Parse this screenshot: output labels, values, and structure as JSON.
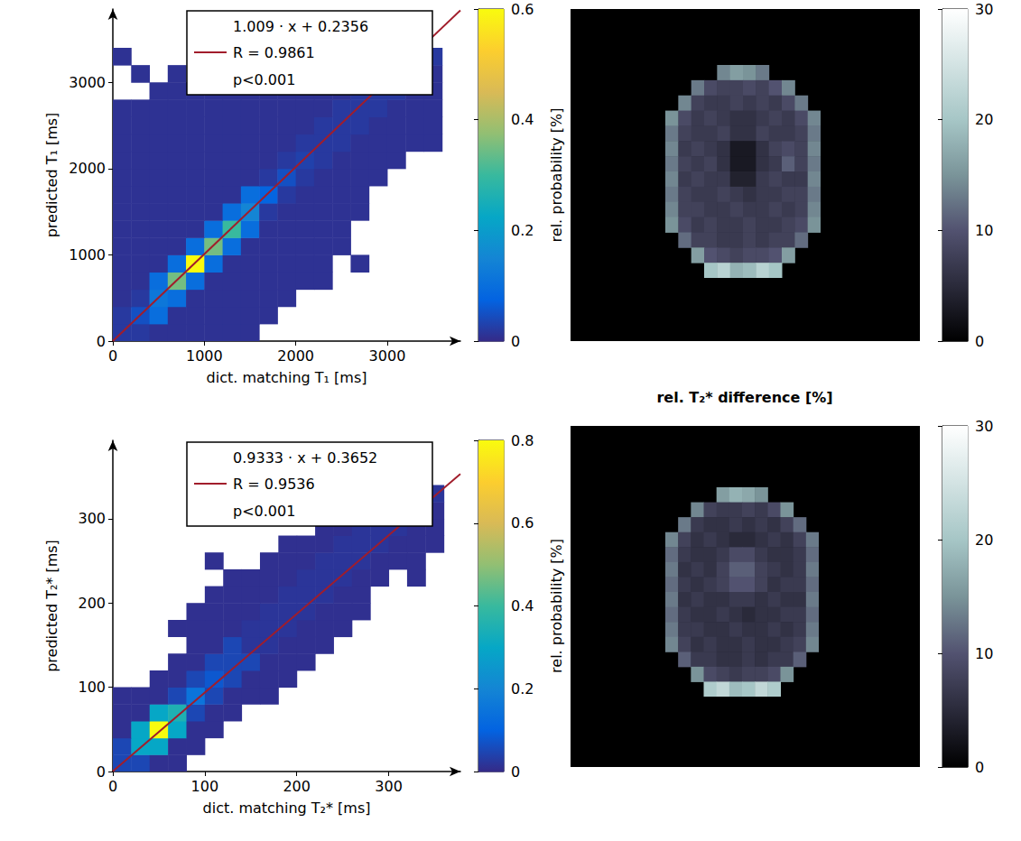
{
  "chart_data": [
    {
      "type": "histogram2d",
      "x_label": "dict. matching T₁ [ms]",
      "y_label": "predicted T₁ [ms]",
      "xlim": [
        0,
        3800
      ],
      "ylim": [
        0,
        3850
      ],
      "xticks": [
        0,
        1000,
        2000,
        3000
      ],
      "yticks": [
        0,
        1000,
        2000,
        3000
      ],
      "x_bins": [
        0,
        200,
        400,
        600,
        800,
        1000,
        1200,
        1400,
        1600,
        1800,
        2000,
        2200,
        2400,
        2600,
        2800,
        3000,
        3200,
        3400,
        3600
      ],
      "y_bins": [
        0,
        200,
        400,
        600,
        800,
        1000,
        1200,
        1400,
        1600,
        1800,
        2000,
        2200,
        2400,
        2600,
        2800,
        3000,
        3200,
        3400,
        3600
      ],
      "probability": [
        [
          0.02,
          0.02,
          0.01,
          0.01,
          0.01,
          0.01,
          0.01,
          0.01,
          null,
          null,
          null,
          null,
          null,
          null,
          null,
          null,
          null,
          null
        ],
        [
          0.02,
          0.05,
          0.1,
          0.01,
          0.01,
          0.01,
          0.01,
          0.01,
          0.01,
          null,
          null,
          null,
          null,
          null,
          null,
          null,
          null,
          null
        ],
        [
          0.01,
          0.02,
          0.12,
          0.1,
          0.01,
          0.01,
          0.01,
          0.01,
          0.01,
          0.01,
          null,
          null,
          null,
          null,
          null,
          null,
          null,
          null
        ],
        [
          0.01,
          0.01,
          0.1,
          0.35,
          0.1,
          0.01,
          0.01,
          0.01,
          0.01,
          0.01,
          0.01,
          0.01,
          null,
          null,
          null,
          null,
          null,
          null
        ],
        [
          0.01,
          0.01,
          0.01,
          0.1,
          0.6,
          0.1,
          0.01,
          0.01,
          0.01,
          0.01,
          0.01,
          0.01,
          null,
          0.01,
          null,
          null,
          null,
          null
        ],
        [
          0.01,
          0.01,
          0.01,
          0.01,
          0.1,
          0.35,
          0.1,
          0.01,
          0.01,
          0.01,
          0.01,
          0.01,
          0.01,
          null,
          null,
          null,
          null,
          null
        ],
        [
          0.01,
          0.01,
          0.01,
          0.01,
          0.01,
          0.1,
          0.3,
          0.1,
          0.01,
          0.01,
          0.01,
          0.01,
          0.01,
          null,
          null,
          null,
          null,
          null
        ],
        [
          0.01,
          0.01,
          0.01,
          0.01,
          0.01,
          0.01,
          0.1,
          0.15,
          0.02,
          0.01,
          0.01,
          0.01,
          0.01,
          0.01,
          null,
          null,
          null,
          null
        ],
        [
          0.01,
          0.01,
          0.01,
          0.01,
          0.01,
          0.01,
          0.01,
          0.1,
          0.08,
          0.02,
          0.01,
          0.01,
          0.01,
          0.01,
          null,
          null,
          null,
          null
        ],
        [
          0.01,
          0.01,
          0.01,
          0.01,
          0.01,
          0.01,
          0.01,
          0.01,
          0.02,
          0.05,
          0.02,
          0.01,
          0.01,
          0.01,
          0.01,
          null,
          null,
          null
        ],
        [
          0.01,
          0.01,
          0.01,
          0.01,
          0.01,
          0.01,
          0.01,
          0.01,
          0.01,
          0.02,
          0.03,
          0.02,
          0.01,
          0.01,
          0.01,
          0.01,
          null,
          null
        ],
        [
          0.01,
          0.01,
          0.01,
          0.01,
          0.01,
          0.01,
          0.01,
          0.01,
          0.01,
          0.01,
          0.02,
          0.02,
          0.02,
          0.01,
          0.01,
          0.01,
          0.01,
          0.01
        ],
        [
          0.01,
          0.01,
          0.01,
          0.01,
          0.01,
          0.01,
          0.01,
          0.01,
          0.01,
          0.01,
          0.01,
          0.02,
          0.02,
          0.02,
          0.01,
          0.01,
          0.01,
          0.01
        ],
        [
          0.01,
          0.01,
          0.01,
          0.01,
          0.01,
          0.01,
          0.01,
          0.01,
          0.01,
          0.01,
          0.01,
          0.01,
          0.02,
          0.02,
          0.02,
          0.01,
          0.01,
          0.01
        ],
        [
          null,
          null,
          0.01,
          0.01,
          0.01,
          0.01,
          0.01,
          0.01,
          0.01,
          0.01,
          0.01,
          0.01,
          0.01,
          0.02,
          0.02,
          0.02,
          0.01,
          0.01
        ],
        [
          null,
          0.01,
          null,
          0.01,
          null,
          0.01,
          0.01,
          0.01,
          0.01,
          0.01,
          0.01,
          0.01,
          0.01,
          0.01,
          0.02,
          0.02,
          0.02,
          0.01
        ],
        [
          0.01,
          null,
          null,
          null,
          null,
          null,
          0.01,
          0.01,
          0.01,
          0.01,
          0.01,
          0.01,
          0.01,
          0.01,
          0.01,
          0.02,
          0.02,
          0.02
        ],
        [
          null,
          null,
          null,
          null,
          null,
          null,
          0.01,
          0.01,
          0.01,
          0.01,
          0.01,
          0.01,
          0.01,
          0.01,
          0.01,
          0.01,
          0.02,
          null
        ]
      ],
      "colorbar": {
        "label": "rel. probability [%]",
        "range": [
          0,
          0.6
        ],
        "ticks": [
          0,
          0.2,
          0.4,
          0.6
        ]
      },
      "fit": {
        "label": "1.009 · x + 0.2356",
        "slope": 1.009,
        "intercept": 0.2356,
        "r_label": "R = 0.9861",
        "p_label": "p<0.001",
        "color": "#a11d2b"
      }
    },
    {
      "type": "heatmap",
      "tick_labels": false,
      "values": [
        [
          null,
          null,
          null,
          null,
          14,
          16,
          15,
          13,
          null,
          null,
          null,
          null
        ],
        [
          null,
          null,
          13,
          9,
          8,
          8,
          9,
          8,
          10,
          14,
          null,
          null
        ],
        [
          null,
          14,
          8,
          7,
          7,
          8,
          7,
          8,
          7,
          9,
          13,
          null
        ],
        [
          15,
          9,
          7,
          8,
          7,
          6,
          6,
          7,
          8,
          7,
          9,
          14
        ],
        [
          13,
          8,
          7,
          7,
          8,
          6,
          6,
          8,
          7,
          7,
          8,
          13
        ],
        [
          14,
          7,
          8,
          7,
          6,
          3,
          3,
          6,
          8,
          9,
          8,
          14
        ],
        [
          13,
          8,
          7,
          8,
          6,
          3,
          3,
          6,
          7,
          11,
          8,
          13
        ],
        [
          14,
          7,
          8,
          7,
          7,
          4,
          4,
          7,
          8,
          7,
          7,
          14
        ],
        [
          13,
          8,
          7,
          7,
          8,
          7,
          6,
          7,
          7,
          8,
          8,
          13
        ],
        [
          14,
          8,
          8,
          7,
          7,
          8,
          7,
          7,
          8,
          7,
          8,
          14
        ],
        [
          15,
          9,
          7,
          8,
          7,
          7,
          8,
          7,
          7,
          8,
          9,
          15
        ],
        [
          null,
          12,
          8,
          8,
          7,
          7,
          8,
          7,
          8,
          8,
          12,
          null
        ],
        [
          null,
          null,
          16,
          10,
          9,
          8,
          9,
          9,
          10,
          16,
          null,
          null
        ],
        [
          null,
          null,
          null,
          20,
          22,
          18,
          19,
          22,
          20,
          null,
          null,
          null
        ]
      ],
      "colorbar": {
        "range": [
          0,
          30
        ],
        "ticks": [
          0,
          10,
          20,
          30
        ]
      }
    },
    {
      "type": "histogram2d",
      "x_label": "dict. matching T₂* [ms]",
      "y_label": "predicted T₂* [ms]",
      "xlim": [
        0,
        378
      ],
      "ylim": [
        0,
        393
      ],
      "xticks": [
        0,
        100,
        200,
        300
      ],
      "yticks": [
        0,
        100,
        200,
        300
      ],
      "x_bins": [
        0,
        20,
        40,
        60,
        80,
        100,
        120,
        140,
        160,
        180,
        200,
        220,
        240,
        260,
        280,
        300,
        320,
        340,
        360
      ],
      "y_bins": [
        0,
        20,
        40,
        60,
        80,
        100,
        120,
        140,
        160,
        180,
        200,
        220,
        240,
        260,
        280,
        300,
        320,
        340,
        360
      ],
      "probability": [
        [
          0.05,
          0.05,
          0.01,
          0.01,
          null,
          null,
          null,
          null,
          null,
          null,
          null,
          null,
          null,
          null,
          null,
          null,
          null,
          null
        ],
        [
          0.05,
          0.3,
          0.3,
          0.01,
          0.01,
          null,
          null,
          null,
          null,
          null,
          null,
          null,
          null,
          null,
          null,
          null,
          null,
          null
        ],
        [
          0.01,
          0.3,
          0.8,
          0.3,
          0.01,
          0.01,
          null,
          null,
          null,
          null,
          null,
          null,
          null,
          null,
          null,
          null,
          null,
          null
        ],
        [
          0.01,
          0.01,
          0.3,
          0.35,
          0.05,
          0.01,
          0.01,
          null,
          null,
          null,
          null,
          null,
          null,
          null,
          null,
          null,
          null,
          null
        ],
        [
          0.01,
          0.01,
          0.01,
          0.05,
          0.15,
          0.05,
          0.01,
          0.01,
          0.01,
          null,
          null,
          null,
          null,
          null,
          null,
          null,
          null,
          null
        ],
        [
          null,
          null,
          0.01,
          0.01,
          0.05,
          0.08,
          0.05,
          0.01,
          0.01,
          0.01,
          null,
          null,
          null,
          null,
          null,
          null,
          null,
          null
        ],
        [
          null,
          null,
          null,
          0.01,
          0.01,
          0.05,
          0.05,
          0.05,
          0.01,
          0.01,
          0.01,
          null,
          null,
          null,
          null,
          null,
          null,
          null
        ],
        [
          null,
          null,
          null,
          null,
          0.01,
          0.01,
          0.05,
          0.02,
          0.02,
          0.01,
          0.01,
          0.01,
          null,
          null,
          null,
          null,
          null,
          null
        ],
        [
          null,
          null,
          null,
          0.01,
          0.01,
          0.01,
          0.01,
          0.02,
          0.02,
          0.02,
          0.01,
          0.01,
          0.01,
          null,
          null,
          null,
          null,
          null
        ],
        [
          null,
          null,
          null,
          null,
          0.01,
          0.01,
          0.01,
          0.01,
          0.02,
          0.02,
          0.02,
          0.01,
          0.01,
          0.01,
          null,
          null,
          null,
          null
        ],
        [
          null,
          null,
          null,
          null,
          null,
          0.01,
          0.01,
          0.01,
          0.01,
          0.02,
          0.02,
          0.02,
          0.01,
          0.01,
          null,
          null,
          null,
          null
        ],
        [
          null,
          null,
          null,
          null,
          null,
          null,
          0.01,
          0.01,
          0.01,
          0.01,
          0.02,
          0.02,
          0.02,
          0.01,
          0.01,
          null,
          0.01,
          null
        ],
        [
          null,
          null,
          null,
          null,
          null,
          0.01,
          null,
          null,
          0.01,
          0.01,
          0.01,
          0.02,
          0.02,
          0.02,
          0.01,
          0.01,
          0.01,
          null
        ],
        [
          null,
          null,
          null,
          null,
          null,
          null,
          null,
          null,
          null,
          0.01,
          0.01,
          0.01,
          0.02,
          0.02,
          0.02,
          0.01,
          0.01,
          0.01
        ],
        [
          null,
          null,
          null,
          null,
          null,
          null,
          null,
          null,
          null,
          null,
          null,
          0.01,
          0.01,
          0.02,
          0.02,
          0.02,
          0.01,
          0.01
        ],
        [
          null,
          null,
          null,
          null,
          null,
          null,
          null,
          null,
          null,
          null,
          null,
          null,
          0.01,
          0.01,
          0.02,
          0.02,
          0.02,
          0.01
        ],
        [
          null,
          null,
          null,
          null,
          null,
          null,
          null,
          null,
          null,
          null,
          null,
          null,
          null,
          0.01,
          0.01,
          0.02,
          0.02,
          0.02
        ],
        [
          null,
          null,
          null,
          null,
          null,
          null,
          null,
          null,
          null,
          null,
          null,
          null,
          null,
          0.01,
          0.01,
          0.01,
          0.02,
          null
        ]
      ],
      "colorbar": {
        "label": "rel. probability [%]",
        "range": [
          0,
          0.8
        ],
        "ticks": [
          0,
          0.2,
          0.4,
          0.6,
          0.8
        ]
      },
      "fit": {
        "label": "0.9333 · x + 0.3652",
        "slope": 0.9333,
        "intercept": 0.3652,
        "r_label": "R = 0.9536",
        "p_label": "p<0.001",
        "color": "#a11d2b"
      }
    },
    {
      "type": "heatmap",
      "tick_labels": false,
      "title": "rel. T₂* difference [%]",
      "values": [
        [
          null,
          null,
          null,
          null,
          16,
          18,
          17,
          15,
          null,
          null,
          null,
          null
        ],
        [
          null,
          null,
          14,
          8,
          7,
          7,
          8,
          7,
          9,
          15,
          null,
          null
        ],
        [
          null,
          13,
          7,
          6,
          6,
          7,
          6,
          7,
          6,
          8,
          12,
          null
        ],
        [
          14,
          8,
          6,
          7,
          6,
          5,
          5,
          6,
          7,
          6,
          8,
          13
        ],
        [
          12,
          7,
          6,
          6,
          7,
          9,
          9,
          7,
          6,
          6,
          7,
          12
        ],
        [
          13,
          6,
          7,
          6,
          8,
          11,
          11,
          8,
          7,
          6,
          7,
          13
        ],
        [
          12,
          7,
          6,
          7,
          8,
          10,
          10,
          8,
          6,
          7,
          7,
          12
        ],
        [
          13,
          6,
          7,
          6,
          6,
          7,
          7,
          6,
          7,
          6,
          6,
          13
        ],
        [
          12,
          7,
          6,
          6,
          7,
          6,
          5,
          6,
          6,
          7,
          7,
          12
        ],
        [
          13,
          7,
          7,
          6,
          6,
          7,
          6,
          6,
          7,
          6,
          7,
          13
        ],
        [
          14,
          8,
          6,
          7,
          6,
          6,
          7,
          6,
          6,
          7,
          8,
          14
        ],
        [
          null,
          11,
          7,
          7,
          6,
          6,
          7,
          6,
          7,
          7,
          11,
          null
        ],
        [
          null,
          null,
          15,
          9,
          8,
          7,
          8,
          8,
          9,
          15,
          null,
          null
        ],
        [
          null,
          null,
          null,
          21,
          23,
          19,
          20,
          23,
          21,
          null,
          null,
          null
        ]
      ],
      "colorbar": {
        "range": [
          0,
          30
        ],
        "ticks": [
          0,
          10,
          20,
          30
        ]
      }
    }
  ]
}
